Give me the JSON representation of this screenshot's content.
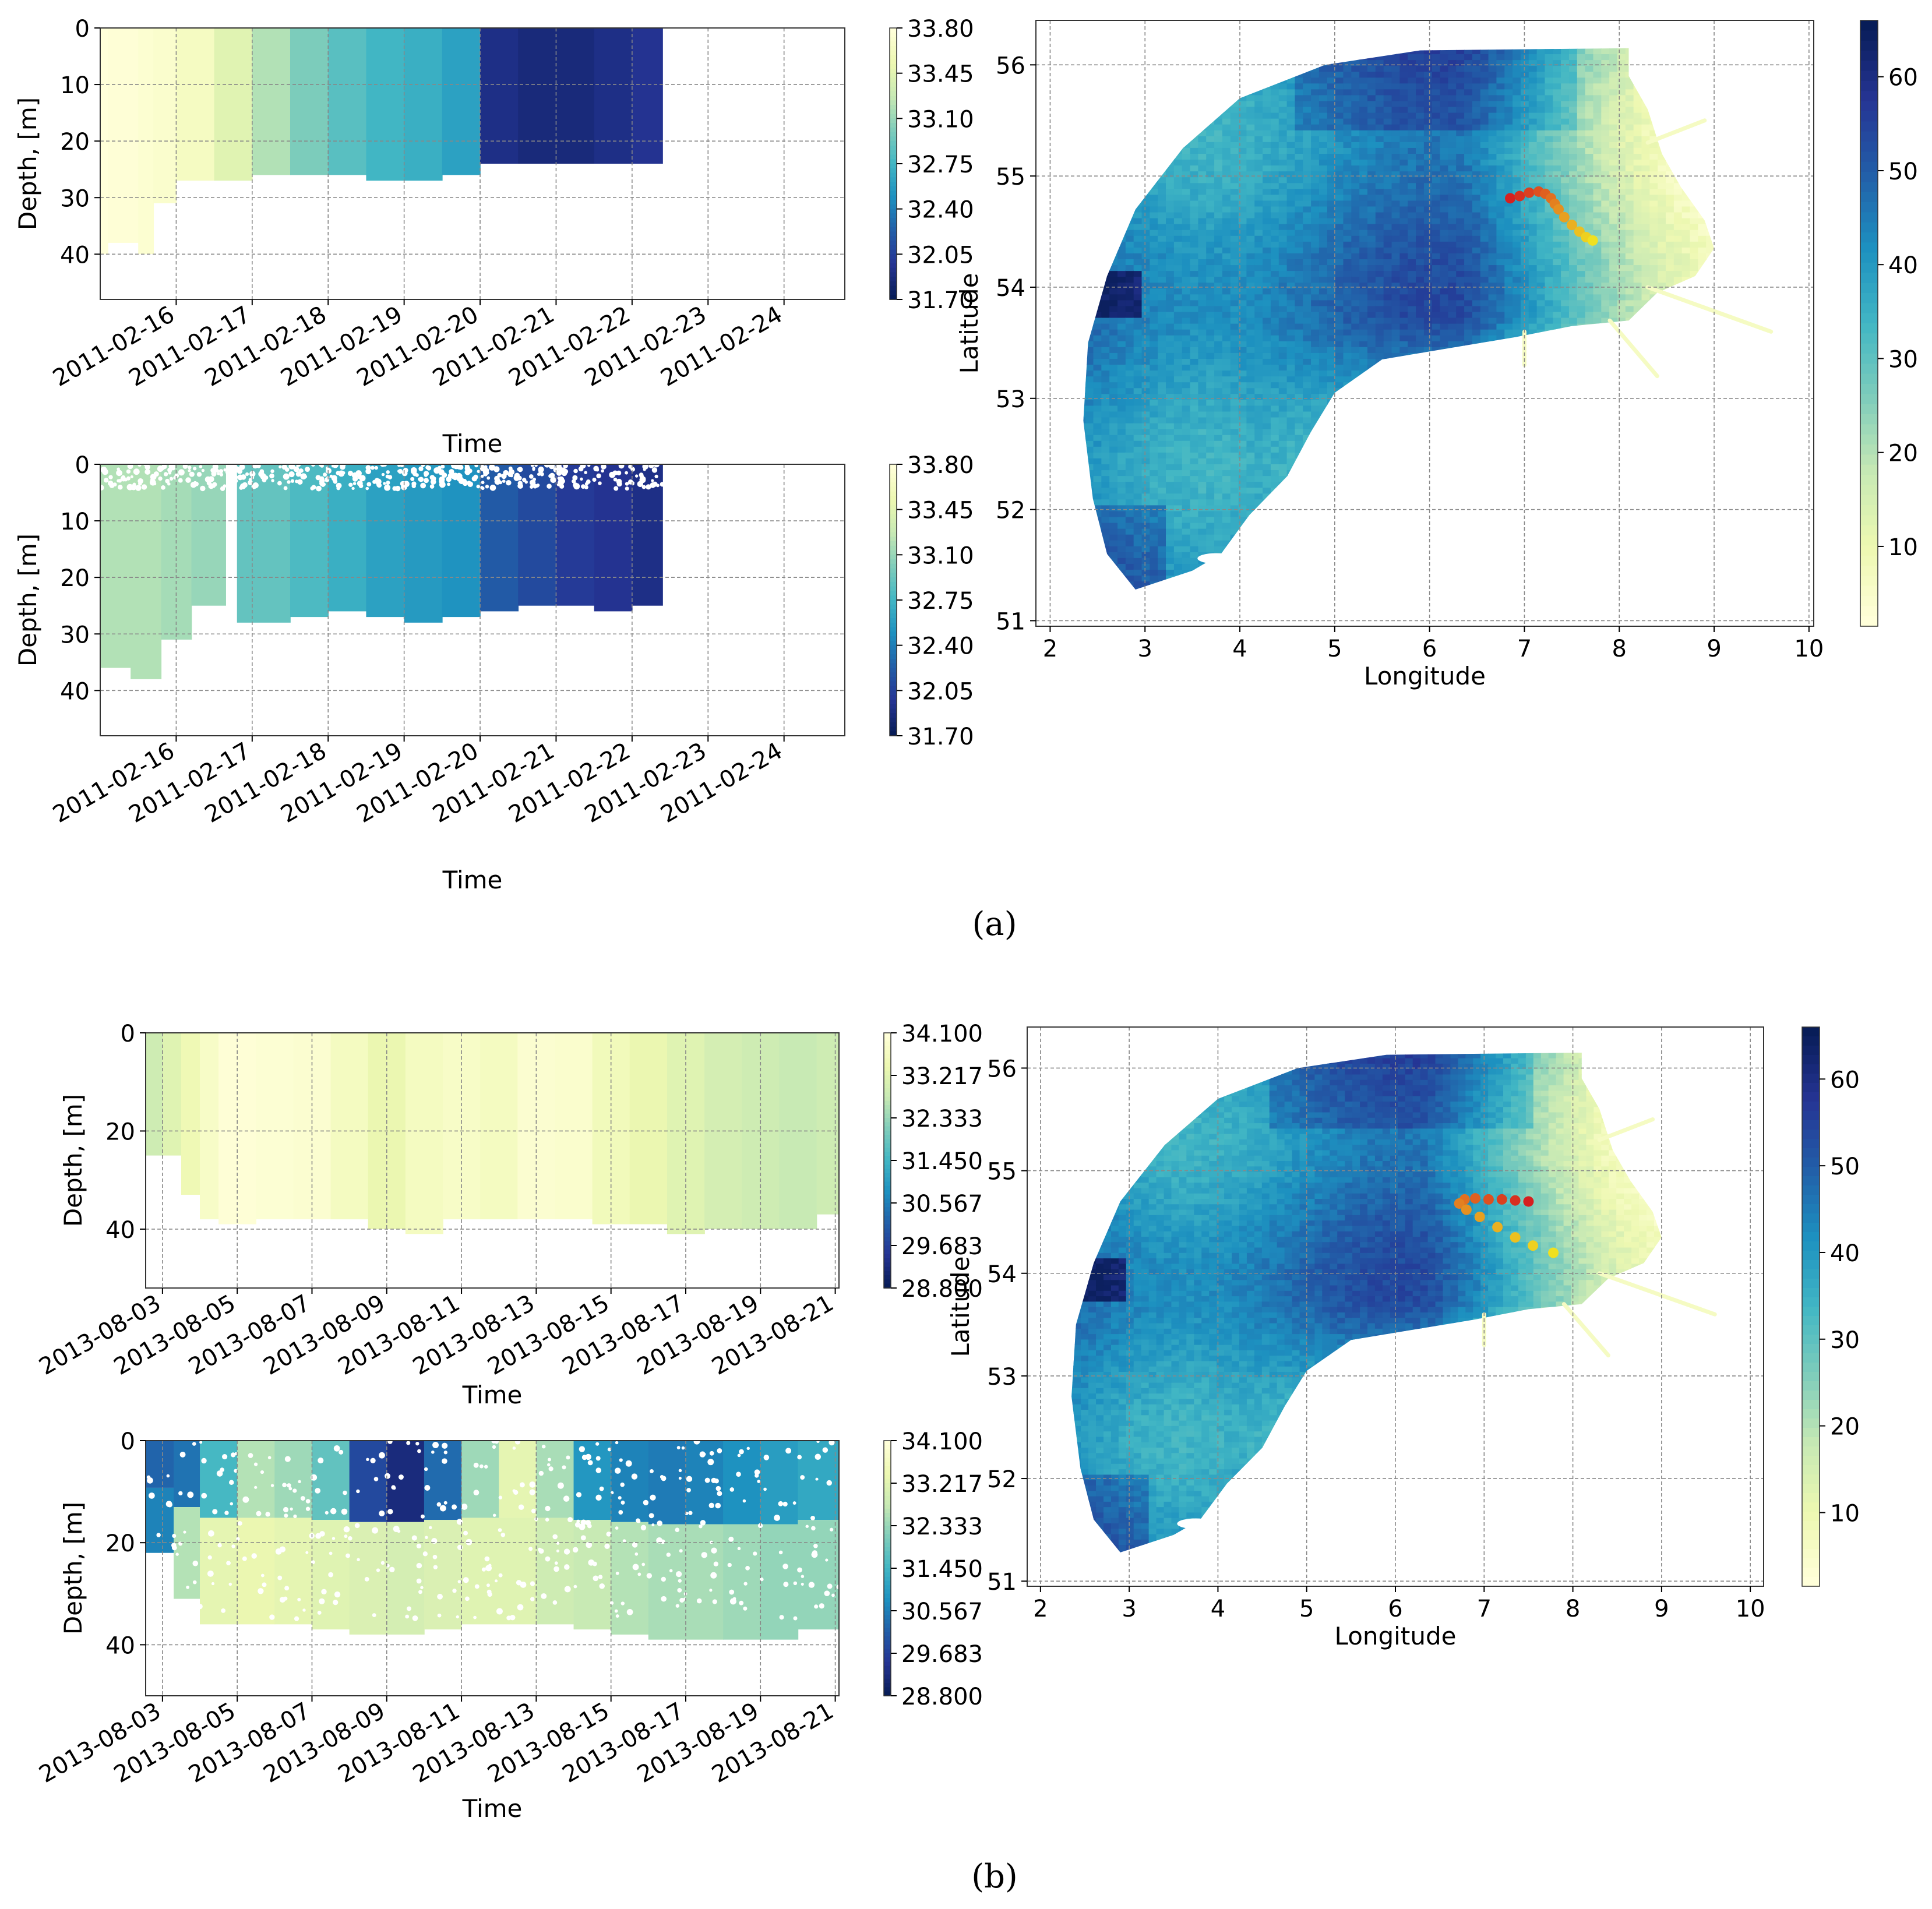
{
  "figure": {
    "caption_a": "(a)",
    "caption_b": "(b)"
  },
  "colors": {
    "salinity_stops": [
      "#ffffd9",
      "#edf8b1",
      "#c7e9b4",
      "#7fcdbb",
      "#41b6c4",
      "#1d91c0",
      "#225ea8",
      "#253494",
      "#081d58"
    ],
    "track_start": "#f0e020",
    "track_end": "#d62020",
    "grid": "#888888"
  },
  "chart_data": [
    {
      "id": "a-top",
      "type": "heatmap",
      "panel": "a",
      "xlabel": "Time",
      "ylabel": "Depth, [m]",
      "xtick_labels": [
        "2011-02-16",
        "2011-02-17",
        "2011-02-18",
        "2011-02-19",
        "2011-02-20",
        "2011-02-21",
        "2011-02-22",
        "2011-02-23",
        "2011-02-24"
      ],
      "ytick_labels": [
        "0",
        "10",
        "20",
        "30",
        "40"
      ],
      "x_days": [
        -1.0,
        8.8
      ],
      "xtick_days": [
        0,
        1,
        2,
        3,
        4,
        5,
        6,
        7,
        8
      ],
      "ylim": [
        48,
        0
      ],
      "yticks": [
        0,
        10,
        20,
        30,
        40
      ],
      "data_end_day": 6.4,
      "style": "field",
      "colorbar": {
        "vmin": 31.7,
        "vmax": 33.8,
        "tick_labels": [
          "33.80",
          "33.45",
          "33.10",
          "32.75",
          "32.40",
          "32.05",
          "31.70"
        ]
      },
      "segments": [
        {
          "t": [
            -1.0,
            -0.9
          ],
          "value": 33.8,
          "depth": 40
        },
        {
          "t": [
            -0.9,
            -0.5
          ],
          "value": 33.78,
          "depth": 38
        },
        {
          "t": [
            -0.5,
            -0.3
          ],
          "value": 33.75,
          "depth": 40
        },
        {
          "t": [
            -0.3,
            0.0
          ],
          "value": 33.72,
          "depth": 31
        },
        {
          "t": [
            0.0,
            0.5
          ],
          "value": 33.65,
          "depth": 27
        },
        {
          "t": [
            0.5,
            1.0
          ],
          "value": 33.45,
          "depth": 27
        },
        {
          "t": [
            1.0,
            1.5
          ],
          "value": 33.2,
          "depth": 26
        },
        {
          "t": [
            1.5,
            2.0
          ],
          "value": 33.0,
          "depth": 26
        },
        {
          "t": [
            2.0,
            2.5
          ],
          "value": 32.85,
          "depth": 26
        },
        {
          "t": [
            2.5,
            3.0
          ],
          "value": 32.75,
          "depth": 27
        },
        {
          "t": [
            3.0,
            3.5
          ],
          "value": 32.7,
          "depth": 27
        },
        {
          "t": [
            3.5,
            4.0
          ],
          "value": 32.6,
          "depth": 26
        },
        {
          "t": [
            4.0,
            4.5
          ],
          "value": 31.9,
          "depth": 24
        },
        {
          "t": [
            4.5,
            5.0
          ],
          "value": 31.85,
          "depth": 24
        },
        {
          "t": [
            5.0,
            5.5
          ],
          "value": 31.85,
          "depth": 24
        },
        {
          "t": [
            5.5,
            6.0
          ],
          "value": 31.9,
          "depth": 24
        },
        {
          "t": [
            6.0,
            6.4
          ],
          "value": 31.95,
          "depth": 24
        }
      ]
    },
    {
      "id": "a-bottom",
      "type": "heatmap",
      "panel": "a",
      "xlabel": "Time",
      "ylabel": "Depth, [m]",
      "xtick_labels": [
        "2011-02-16",
        "2011-02-17",
        "2011-02-18",
        "2011-02-19",
        "2011-02-20",
        "2011-02-21",
        "2011-02-22",
        "2011-02-23",
        "2011-02-24"
      ],
      "ytick_labels": [
        "0",
        "10",
        "20",
        "30",
        "40"
      ],
      "x_days": [
        -1.0,
        8.8
      ],
      "xtick_days": [
        0,
        1,
        2,
        3,
        4,
        5,
        6,
        7,
        8
      ],
      "ylim": [
        48,
        0
      ],
      "yticks": [
        0,
        10,
        20,
        30,
        40
      ],
      "data_end_day": 6.4,
      "style": "scatter",
      "colorbar": {
        "vmin": 31.7,
        "vmax": 33.8,
        "tick_labels": [
          "33.80",
          "33.45",
          "33.10",
          "32.75",
          "32.40",
          "32.05",
          "31.70"
        ]
      },
      "segments": [
        {
          "t": [
            -1.0,
            -0.6
          ],
          "value": 33.2,
          "depth": 36
        },
        {
          "t": [
            -0.6,
            -0.2
          ],
          "value": 33.2,
          "depth": 38
        },
        {
          "t": [
            -0.2,
            0.2
          ],
          "value": 33.15,
          "depth": 31
        },
        {
          "t": [
            0.2,
            0.65
          ],
          "value": 33.1,
          "depth": 25
        },
        {
          "t": [
            0.8,
            1.5
          ],
          "value": 32.9,
          "depth": 28
        },
        {
          "t": [
            1.5,
            2.0
          ],
          "value": 32.8,
          "depth": 27
        },
        {
          "t": [
            2.0,
            2.5
          ],
          "value": 32.7,
          "depth": 26
        },
        {
          "t": [
            2.5,
            3.0
          ],
          "value": 32.6,
          "depth": 27
        },
        {
          "t": [
            3.0,
            3.5
          ],
          "value": 32.55,
          "depth": 28
        },
        {
          "t": [
            3.5,
            4.0
          ],
          "value": 32.5,
          "depth": 27
        },
        {
          "t": [
            4.0,
            4.5
          ],
          "value": 32.2,
          "depth": 26
        },
        {
          "t": [
            4.5,
            5.0
          ],
          "value": 32.1,
          "depth": 25
        },
        {
          "t": [
            5.0,
            5.5
          ],
          "value": 32.0,
          "depth": 25
        },
        {
          "t": [
            5.5,
            6.0
          ],
          "value": 31.95,
          "depth": 26
        },
        {
          "t": [
            6.0,
            6.4
          ],
          "value": 31.9,
          "depth": 25
        }
      ]
    },
    {
      "id": "a-map",
      "type": "heatmap",
      "panel": "a",
      "xlabel": "Longitude",
      "ylabel": "Latitude",
      "xlim": [
        1.85,
        10.05
      ],
      "ylim": [
        50.95,
        56.4
      ],
      "xticks": [
        2,
        3,
        4,
        5,
        6,
        7,
        8,
        9,
        10
      ],
      "yticks": [
        51,
        52,
        53,
        54,
        55,
        56
      ],
      "xtick_labels": [
        "2",
        "3",
        "4",
        "5",
        "6",
        "7",
        "8",
        "9",
        "10"
      ],
      "ytick_labels": [
        "51",
        "52",
        "53",
        "54",
        "55",
        "56"
      ],
      "colorbar": {
        "vmin": 1.5,
        "vmax": 66,
        "ticks": [
          10,
          20,
          30,
          40,
          50,
          60
        ],
        "tick_labels": [
          "10",
          "20",
          "30",
          "40",
          "50",
          "60"
        ]
      },
      "track": {
        "lon": [
          6.85,
          6.95,
          7.05,
          7.15,
          7.22,
          7.28,
          7.32,
          7.36,
          7.42,
          7.5,
          7.58,
          7.65,
          7.72
        ],
        "lat": [
          54.8,
          54.82,
          54.85,
          54.86,
          54.84,
          54.8,
          54.75,
          54.7,
          54.63,
          54.56,
          54.5,
          54.45,
          54.42
        ]
      }
    },
    {
      "id": "b-top",
      "type": "heatmap",
      "panel": "b",
      "xlabel": "Time",
      "ylabel": "Depth, [m]",
      "xtick_labels": [
        "2013-08-03",
        "2013-08-05",
        "2013-08-07",
        "2013-08-09",
        "2013-08-11",
        "2013-08-13",
        "2013-08-15",
        "2013-08-17",
        "2013-08-19",
        "2013-08-21"
      ],
      "ytick_labels": [
        "0",
        "20",
        "40"
      ],
      "x_days": [
        -0.45,
        18.1
      ],
      "xtick_days": [
        0,
        2,
        4,
        6,
        8,
        10,
        12,
        14,
        16,
        18
      ],
      "ylim": [
        52,
        0
      ],
      "yticks": [
        0,
        20,
        40
      ],
      "data_end_day": 18.1,
      "style": "field",
      "colorbar": {
        "vmin": 28.8,
        "vmax": 34.1,
        "tick_labels": [
          "34.100",
          "33.217",
          "32.333",
          "31.450",
          "30.567",
          "29.683",
          "28.800"
        ]
      },
      "segments": [
        {
          "t": [
            -0.45,
            0.0
          ],
          "value": 32.9,
          "depth": 25
        },
        {
          "t": [
            0.0,
            0.5
          ],
          "value": 33.2,
          "depth": 25
        },
        {
          "t": [
            0.5,
            1.0
          ],
          "value": 33.5,
          "depth": 33
        },
        {
          "t": [
            1.0,
            1.5
          ],
          "value": 33.8,
          "depth": 38
        },
        {
          "t": [
            1.5,
            2.5
          ],
          "value": 34.05,
          "depth": 39
        },
        {
          "t": [
            2.5,
            3.5
          ],
          "value": 34.0,
          "depth": 38
        },
        {
          "t": [
            3.5,
            4.5
          ],
          "value": 33.95,
          "depth": 38
        },
        {
          "t": [
            4.5,
            5.5
          ],
          "value": 33.7,
          "depth": 38
        },
        {
          "t": [
            5.5,
            6.5
          ],
          "value": 33.4,
          "depth": 40
        },
        {
          "t": [
            6.5,
            7.5
          ],
          "value": 33.7,
          "depth": 41
        },
        {
          "t": [
            7.5,
            8.5
          ],
          "value": 33.8,
          "depth": 38
        },
        {
          "t": [
            8.5,
            9.5
          ],
          "value": 33.7,
          "depth": 38
        },
        {
          "t": [
            9.5,
            10.5
          ],
          "value": 33.95,
          "depth": 38
        },
        {
          "t": [
            10.5,
            11.5
          ],
          "value": 33.9,
          "depth": 38
        },
        {
          "t": [
            11.5,
            12.5
          ],
          "value": 33.6,
          "depth": 39
        },
        {
          "t": [
            12.5,
            13.5
          ],
          "value": 33.4,
          "depth": 39
        },
        {
          "t": [
            13.5,
            14.5
          ],
          "value": 33.2,
          "depth": 41
        },
        {
          "t": [
            14.5,
            15.5
          ],
          "value": 33.0,
          "depth": 40
        },
        {
          "t": [
            15.5,
            16.5
          ],
          "value": 32.9,
          "depth": 40
        },
        {
          "t": [
            16.5,
            17.5
          ],
          "value": 32.8,
          "depth": 40
        },
        {
          "t": [
            17.5,
            18.1
          ],
          "value": 32.9,
          "depth": 37
        }
      ]
    },
    {
      "id": "b-bottom",
      "type": "heatmap",
      "panel": "b",
      "xlabel": "Time",
      "ylabel": "Depth, [m]",
      "xtick_labels": [
        "2013-08-03",
        "2013-08-05",
        "2013-08-07",
        "2013-08-09",
        "2013-08-11",
        "2013-08-13",
        "2013-08-15",
        "2013-08-17",
        "2013-08-19",
        "2013-08-21"
      ],
      "ytick_labels": [
        "0",
        "20",
        "40"
      ],
      "x_days": [
        -0.45,
        18.1
      ],
      "xtick_days": [
        0,
        2,
        4,
        6,
        8,
        10,
        12,
        14,
        16,
        18
      ],
      "ylim": [
        50,
        0
      ],
      "yticks": [
        0,
        20,
        40
      ],
      "data_end_day": 18.1,
      "style": "layered",
      "colorbar": {
        "vmin": 28.8,
        "vmax": 34.1,
        "tick_labels": [
          "34.100",
          "33.217",
          "32.333",
          "31.450",
          "30.567",
          "29.683",
          "28.800"
        ]
      },
      "segments": [
        {
          "t": [
            -0.45,
            0.3
          ],
          "surface": 30.2,
          "value": 30.6,
          "depth": 22
        },
        {
          "t": [
            0.3,
            1.0
          ],
          "surface": 30.4,
          "value": 32.6,
          "depth": 31
        },
        {
          "t": [
            1.0,
            2.0
          ],
          "surface": 31.5,
          "value": 33.3,
          "depth": 36
        },
        {
          "t": [
            2.0,
            3.0
          ],
          "surface": 32.6,
          "value": 33.4,
          "depth": 36
        },
        {
          "t": [
            3.0,
            4.0
          ],
          "surface": 32.4,
          "value": 33.3,
          "depth": 36
        },
        {
          "t": [
            4.0,
            5.0
          ],
          "surface": 31.8,
          "value": 33.2,
          "depth": 37
        },
        {
          "t": [
            5.0,
            6.0
          ],
          "surface": 29.8,
          "value": 33.1,
          "depth": 38
        },
        {
          "t": [
            6.0,
            7.0
          ],
          "surface": 29.2,
          "value": 33.0,
          "depth": 38
        },
        {
          "t": [
            7.0,
            8.0
          ],
          "surface": 30.3,
          "value": 33.1,
          "depth": 37
        },
        {
          "t": [
            8.0,
            9.0
          ],
          "surface": 32.4,
          "value": 33.2,
          "depth": 36
        },
        {
          "t": [
            9.0,
            10.0
          ],
          "surface": 33.3,
          "value": 33.2,
          "depth": 36
        },
        {
          "t": [
            10.0,
            11.0
          ],
          "surface": 32.5,
          "value": 32.9,
          "depth": 36
        },
        {
          "t": [
            11.0,
            12.0
          ],
          "surface": 30.9,
          "value": 32.8,
          "depth": 37
        },
        {
          "t": [
            12.0,
            13.0
          ],
          "surface": 30.6,
          "value": 32.6,
          "depth": 38
        },
        {
          "t": [
            13.0,
            14.0
          ],
          "surface": 30.5,
          "value": 32.5,
          "depth": 39
        },
        {
          "t": [
            14.0,
            15.0
          ],
          "surface": 30.6,
          "value": 32.5,
          "depth": 39
        },
        {
          "t": [
            15.0,
            16.0
          ],
          "surface": 30.8,
          "value": 32.4,
          "depth": 39
        },
        {
          "t": [
            16.0,
            17.0
          ],
          "surface": 31.0,
          "value": 32.3,
          "depth": 39
        },
        {
          "t": [
            17.0,
            18.1
          ],
          "surface": 31.2,
          "value": 32.3,
          "depth": 37
        }
      ]
    },
    {
      "id": "b-map",
      "type": "heatmap",
      "panel": "b",
      "xlabel": "Longitude",
      "ylabel": "Latitude",
      "xlim": [
        1.85,
        10.15
      ],
      "ylim": [
        50.95,
        56.4
      ],
      "xticks": [
        2,
        3,
        4,
        5,
        6,
        7,
        8,
        9,
        10
      ],
      "yticks": [
        51,
        52,
        53,
        54,
        55,
        56
      ],
      "xtick_labels": [
        "2",
        "3",
        "4",
        "5",
        "6",
        "7",
        "8",
        "9",
        "10"
      ],
      "ytick_labels": [
        "51",
        "52",
        "53",
        "54",
        "55",
        "56"
      ],
      "colorbar": {
        "vmin": 1.5,
        "vmax": 66,
        "ticks": [
          10,
          20,
          30,
          40,
          50,
          60
        ],
        "tick_labels": [
          "10",
          "20",
          "30",
          "40",
          "50",
          "60"
        ]
      },
      "track": {
        "lon": [
          7.5,
          7.35,
          7.2,
          7.05,
          6.9,
          6.78,
          6.72,
          6.8,
          6.95,
          7.15,
          7.35,
          7.55,
          7.78
        ],
        "lat": [
          54.7,
          54.71,
          54.72,
          54.72,
          54.73,
          54.72,
          54.68,
          54.62,
          54.55,
          54.45,
          54.35,
          54.27,
          54.2
        ]
      }
    }
  ]
}
